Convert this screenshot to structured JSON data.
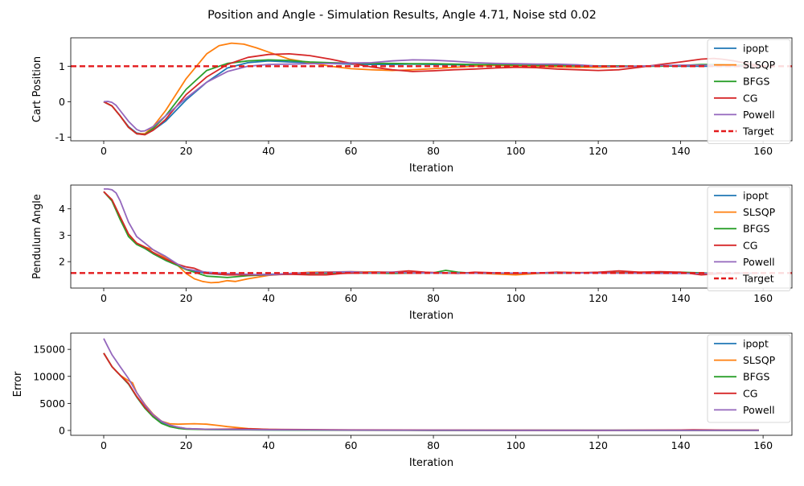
{
  "figure": {
    "suptitle": "Position and Angle - Simulation Results, Angle 4.71, Noise std 0.02"
  },
  "colors": {
    "ipopt": "#1f77b4",
    "SLSQP": "#ff7f0e",
    "BFGS": "#2ca02c",
    "CG": "#d62728",
    "Powell": "#9467bd",
    "Target": "#e31a1c"
  },
  "chart_data": [
    {
      "type": "line",
      "xlabel": "Iteration",
      "ylabel": "Cart Position",
      "xlim": [
        -8,
        167
      ],
      "ylim": [
        -1.1,
        1.8
      ],
      "xticks": [
        0,
        20,
        40,
        60,
        80,
        100,
        120,
        140,
        160
      ],
      "yticks": [
        -1,
        0,
        1
      ],
      "grid": false,
      "legend_position": "top-right",
      "target": {
        "name": "Target",
        "value": 1.0,
        "style": "dashed"
      },
      "series": [
        {
          "name": "ipopt",
          "x": [
            0,
            2,
            4,
            6,
            8,
            10,
            12,
            15,
            20,
            25,
            30,
            35,
            40,
            45,
            50,
            55,
            60,
            65,
            70,
            75,
            80,
            85,
            90,
            95,
            100,
            105,
            110,
            115,
            120,
            125,
            130,
            135,
            140,
            145,
            150,
            155,
            159
          ],
          "y": [
            0,
            -0.12,
            -0.4,
            -0.7,
            -0.88,
            -0.92,
            -0.8,
            -0.55,
            0.05,
            0.55,
            0.95,
            1.1,
            1.15,
            1.12,
            1.1,
            1.08,
            1.06,
            1.05,
            1.05,
            1.06,
            1.05,
            1.04,
            1.03,
            1.02,
            1.02,
            1.01,
            1.0,
            1.0,
            0.99,
            0.99,
            1.0,
            1.01,
            1.0,
            1.0,
            1.0,
            1.0,
            1.0
          ]
        },
        {
          "name": "SLSQP",
          "x": [
            0,
            2,
            4,
            6,
            8,
            10,
            12,
            15,
            20,
            25,
            28,
            31,
            34,
            37,
            40,
            45,
            50,
            55,
            60,
            65,
            70,
            75,
            80,
            85,
            90,
            95,
            100,
            105,
            110,
            115,
            120,
            125,
            130,
            135,
            140,
            145,
            150,
            155,
            159
          ],
          "y": [
            0,
            -0.12,
            -0.4,
            -0.72,
            -0.9,
            -0.9,
            -0.7,
            -0.25,
            0.65,
            1.35,
            1.58,
            1.65,
            1.62,
            1.52,
            1.4,
            1.2,
            1.1,
            1.0,
            0.93,
            0.9,
            0.88,
            0.9,
            0.93,
            0.97,
            1.0,
            1.02,
            1.01,
            1.0,
            0.98,
            0.97,
            0.97,
            0.98,
            1.0,
            1.01,
            1.02,
            1.03,
            1.02,
            1.01,
            1.0
          ]
        },
        {
          "name": "BFGS",
          "x": [
            0,
            2,
            4,
            6,
            8,
            10,
            12,
            15,
            20,
            25,
            30,
            35,
            40,
            45,
            50,
            55,
            60,
            65,
            70,
            75,
            80,
            85,
            90,
            95,
            100,
            105,
            110,
            115,
            120,
            125,
            130,
            135,
            140,
            145,
            150,
            155,
            159
          ],
          "y": [
            0,
            -0.12,
            -0.4,
            -0.72,
            -0.9,
            -0.92,
            -0.75,
            -0.4,
            0.35,
            0.88,
            1.08,
            1.15,
            1.18,
            1.16,
            1.12,
            1.1,
            1.09,
            1.08,
            1.08,
            1.07,
            1.07,
            1.06,
            1.05,
            1.04,
            1.03,
            1.02,
            1.02,
            1.02,
            1.01,
            1.01,
            1.0,
            1.0,
            1.02,
            1.05,
            1.05,
            1.03,
            1.0
          ]
        },
        {
          "name": "CG",
          "x": [
            0,
            2,
            4,
            6,
            8,
            10,
            12,
            15,
            20,
            25,
            30,
            35,
            40,
            45,
            50,
            55,
            60,
            65,
            70,
            75,
            80,
            85,
            90,
            95,
            100,
            105,
            110,
            115,
            120,
            125,
            130,
            135,
            140,
            145,
            148,
            150,
            153,
            156,
            159
          ],
          "y": [
            0,
            -0.12,
            -0.4,
            -0.72,
            -0.9,
            -0.93,
            -0.8,
            -0.5,
            0.2,
            0.7,
            1.05,
            1.25,
            1.33,
            1.35,
            1.3,
            1.2,
            1.08,
            0.98,
            0.9,
            0.85,
            0.87,
            0.9,
            0.92,
            0.95,
            0.97,
            0.96,
            0.92,
            0.9,
            0.88,
            0.9,
            0.97,
            1.05,
            1.12,
            1.2,
            1.22,
            1.2,
            1.15,
            1.08,
            1.02
          ]
        },
        {
          "name": "Powell",
          "x": [
            0,
            1,
            2,
            3,
            4,
            6,
            8,
            9,
            10,
            12,
            15,
            20,
            25,
            30,
            35,
            40,
            45,
            50,
            55,
            60,
            65,
            70,
            75,
            80,
            85,
            90,
            95,
            100,
            105,
            110,
            115,
            120,
            125,
            130,
            135,
            140,
            145,
            150,
            155,
            159
          ],
          "y": [
            0,
            0.01,
            -0.02,
            -0.1,
            -0.25,
            -0.55,
            -0.78,
            -0.83,
            -0.82,
            -0.7,
            -0.4,
            0.1,
            0.55,
            0.85,
            1.0,
            1.05,
            1.06,
            1.07,
            1.08,
            1.09,
            1.1,
            1.15,
            1.18,
            1.17,
            1.14,
            1.1,
            1.08,
            1.07,
            1.06,
            1.06,
            1.04,
            1.0,
            0.99,
            1.0,
            1.02,
            1.03,
            1.03,
            1.02,
            1.01,
            1.0
          ]
        }
      ]
    },
    {
      "type": "line",
      "xlabel": "Iteration",
      "ylabel": "Pendulum Angle",
      "xlim": [
        -8,
        167
      ],
      "ylim": [
        1.0,
        4.9
      ],
      "xticks": [
        0,
        20,
        40,
        60,
        80,
        100,
        120,
        140,
        160
      ],
      "yticks": [
        2,
        3,
        4
      ],
      "grid": false,
      "legend_position": "top-right",
      "target": {
        "name": "Target",
        "value": 1.57,
        "style": "dashed"
      },
      "series": [
        {
          "name": "ipopt",
          "x": [
            0,
            2,
            4,
            6,
            8,
            10,
            12,
            15,
            18,
            20,
            25,
            30,
            35,
            40,
            50,
            60,
            70,
            80,
            90,
            100,
            110,
            120,
            130,
            140,
            150,
            159
          ],
          "y": [
            4.65,
            4.3,
            3.6,
            3.0,
            2.7,
            2.5,
            2.3,
            2.05,
            1.85,
            1.7,
            1.55,
            1.5,
            1.5,
            1.52,
            1.55,
            1.56,
            1.58,
            1.57,
            1.56,
            1.55,
            1.57,
            1.58,
            1.57,
            1.56,
            1.55,
            1.56
          ]
        },
        {
          "name": "SLSQP",
          "x": [
            0,
            2,
            4,
            6,
            8,
            10,
            12,
            15,
            18,
            20,
            22,
            24,
            26,
            28,
            30,
            32,
            35,
            40,
            45,
            50,
            60,
            70,
            80,
            90,
            100,
            110,
            120,
            130,
            140,
            150,
            159
          ],
          "y": [
            4.65,
            4.3,
            3.6,
            3.0,
            2.7,
            2.55,
            2.45,
            2.15,
            1.85,
            1.55,
            1.35,
            1.25,
            1.2,
            1.22,
            1.28,
            1.25,
            1.35,
            1.48,
            1.55,
            1.6,
            1.62,
            1.6,
            1.58,
            1.57,
            1.5,
            1.6,
            1.58,
            1.6,
            1.57,
            1.55,
            1.56
          ]
        },
        {
          "name": "BFGS",
          "x": [
            0,
            2,
            4,
            6,
            8,
            10,
            12,
            15,
            18,
            20,
            25,
            30,
            35,
            40,
            50,
            60,
            70,
            80,
            83,
            86,
            90,
            100,
            110,
            120,
            130,
            140,
            150,
            159
          ],
          "y": [
            4.65,
            4.3,
            3.6,
            2.95,
            2.65,
            2.5,
            2.3,
            2.05,
            1.85,
            1.7,
            1.45,
            1.4,
            1.47,
            1.5,
            1.55,
            1.58,
            1.55,
            1.58,
            1.67,
            1.6,
            1.56,
            1.56,
            1.57,
            1.58,
            1.57,
            1.6,
            1.55,
            1.56
          ]
        },
        {
          "name": "CG",
          "x": [
            0,
            2,
            4,
            6,
            8,
            10,
            12,
            15,
            18,
            20,
            22,
            24,
            26,
            30,
            35,
            40,
            45,
            50,
            54,
            58,
            62,
            66,
            70,
            74,
            78,
            82,
            86,
            90,
            95,
            100,
            105,
            110,
            115,
            120,
            125,
            130,
            135,
            140,
            145,
            150,
            155,
            159
          ],
          "y": [
            4.65,
            4.35,
            3.7,
            3.05,
            2.7,
            2.55,
            2.35,
            2.1,
            1.9,
            1.8,
            1.75,
            1.62,
            1.55,
            1.5,
            1.5,
            1.5,
            1.52,
            1.5,
            1.5,
            1.55,
            1.58,
            1.6,
            1.6,
            1.65,
            1.6,
            1.58,
            1.55,
            1.6,
            1.58,
            1.55,
            1.57,
            1.6,
            1.58,
            1.6,
            1.65,
            1.6,
            1.62,
            1.6,
            1.5,
            1.55,
            1.57,
            1.56
          ]
        },
        {
          "name": "Powell",
          "x": [
            0,
            1,
            2,
            3,
            4,
            6,
            8,
            10,
            12,
            15,
            18,
            20,
            25,
            30,
            35,
            40,
            45,
            50,
            55,
            60,
            65,
            70,
            75,
            80,
            85,
            90,
            100,
            110,
            120,
            130,
            140,
            150,
            159
          ],
          "y": [
            4.75,
            4.75,
            4.72,
            4.6,
            4.3,
            3.5,
            2.95,
            2.7,
            2.45,
            2.2,
            1.9,
            1.72,
            1.6,
            1.55,
            1.52,
            1.5,
            1.55,
            1.58,
            1.6,
            1.62,
            1.58,
            1.6,
            1.57,
            1.58,
            1.57,
            1.56,
            1.57,
            1.58,
            1.57,
            1.56,
            1.55,
            1.56,
            1.56
          ]
        }
      ]
    },
    {
      "type": "line",
      "xlabel": "Iteration",
      "ylabel": "Error",
      "xlim": [
        -8,
        167
      ],
      "ylim": [
        -900,
        18000
      ],
      "xticks": [
        0,
        20,
        40,
        60,
        80,
        100,
        120,
        140,
        160
      ],
      "yticks": [
        0,
        5000,
        10000,
        15000
      ],
      "grid": false,
      "legend_position": "top-right",
      "series": [
        {
          "name": "ipopt",
          "x": [
            0,
            2,
            4,
            6,
            8,
            10,
            12,
            14,
            16,
            18,
            20,
            25,
            30,
            40,
            60,
            80,
            100,
            120,
            140,
            159
          ],
          "y": [
            14300,
            11800,
            10200,
            8600,
            6200,
            4100,
            2600,
            1500,
            850,
            500,
            300,
            180,
            150,
            100,
            50,
            30,
            20,
            20,
            20,
            20
          ]
        },
        {
          "name": "SLSQP",
          "x": [
            0,
            2,
            4,
            6,
            7,
            8,
            10,
            12,
            14,
            16,
            18,
            20,
            22,
            25,
            28,
            30,
            35,
            40,
            50,
            60,
            80,
            100,
            120,
            140,
            159
          ],
          "y": [
            14300,
            11800,
            10200,
            9200,
            8800,
            7000,
            4800,
            3000,
            1700,
            1250,
            1150,
            1200,
            1250,
            1150,
            900,
            700,
            350,
            180,
            80,
            50,
            30,
            20,
            20,
            20,
            20
          ]
        },
        {
          "name": "BFGS",
          "x": [
            0,
            2,
            4,
            6,
            8,
            10,
            12,
            14,
            16,
            18,
            20,
            25,
            30,
            40,
            60,
            80,
            100,
            120,
            140,
            159
          ],
          "y": [
            14300,
            11800,
            10200,
            8600,
            6200,
            4100,
            2500,
            1300,
            700,
            400,
            250,
            150,
            120,
            80,
            40,
            30,
            20,
            20,
            20,
            20
          ]
        },
        {
          "name": "CG",
          "x": [
            0,
            2,
            4,
            6,
            8,
            10,
            12,
            14,
            16,
            18,
            20,
            25,
            30,
            35,
            40,
            60,
            80,
            100,
            120,
            140,
            143,
            146,
            150,
            159
          ],
          "y": [
            14300,
            11800,
            10200,
            8700,
            6300,
            4300,
            2800,
            1700,
            1000,
            600,
            350,
            220,
            250,
            300,
            200,
            100,
            60,
            40,
            30,
            80,
            120,
            90,
            60,
            50
          ]
        },
        {
          "name": "Powell",
          "x": [
            0,
            1,
            2,
            4,
            6,
            8,
            10,
            12,
            14,
            16,
            18,
            20,
            25,
            30,
            40,
            60,
            80,
            100,
            120,
            140,
            159
          ],
          "y": [
            17000,
            15500,
            14000,
            11800,
            9600,
            7000,
            4700,
            2900,
            1700,
            1000,
            600,
            350,
            220,
            180,
            120,
            60,
            40,
            30,
            20,
            20,
            20
          ]
        }
      ]
    }
  ]
}
